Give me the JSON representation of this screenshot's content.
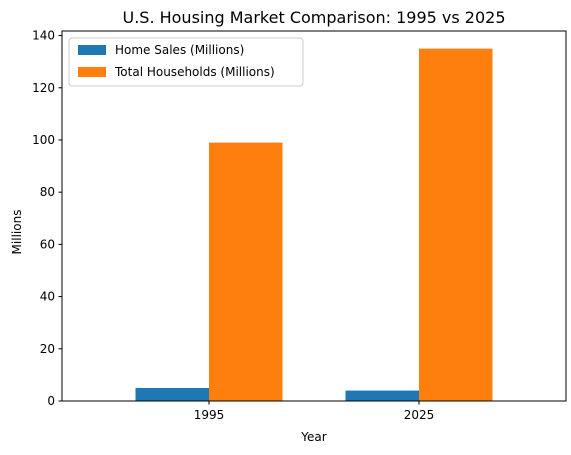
{
  "chart_data": {
    "type": "bar",
    "title": "U.S. Housing Market Comparison: 1995 vs 2025",
    "xlabel": "Year",
    "ylabel": "Millions",
    "categories": [
      "1995",
      "2025"
    ],
    "series": [
      {
        "name": "Home Sales (Millions)",
        "values": [
          5,
          4
        ],
        "color": "#1f77b4"
      },
      {
        "name": "Total Households (Millions)",
        "values": [
          99,
          135
        ],
        "color": "#ff7f0e"
      }
    ],
    "ylim": [
      0,
      141.75
    ],
    "yticks": [
      0,
      20,
      40,
      60,
      80,
      100,
      120,
      140
    ],
    "grid": false,
    "legend_position": "top-left"
  }
}
